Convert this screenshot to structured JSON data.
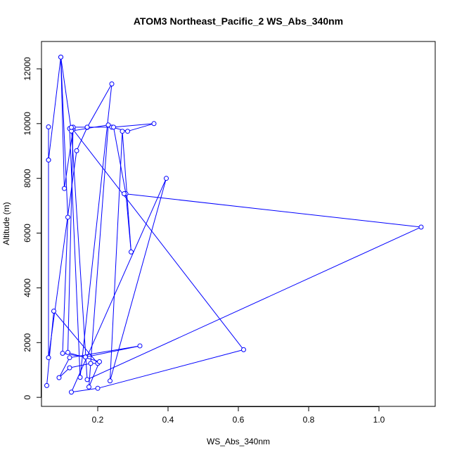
{
  "chart_data": {
    "type": "line",
    "title": "ATOM3 Northeast_Pacific_2 WS_Abs_340nm",
    "xlabel": "WS_Abs_340nm",
    "ylabel": "Altitude (m)",
    "xlim": [
      0.04,
      1.16
    ],
    "ylim": [
      -330,
      13000
    ],
    "x_ticks": [
      0.2,
      0.4,
      0.6,
      0.8,
      1.0
    ],
    "x_tick_labels": [
      "0.2",
      "0.4",
      "0.6",
      "0.8",
      "1.0"
    ],
    "y_ticks": [
      0,
      2000,
      4000,
      6000,
      8000,
      10000,
      12000
    ],
    "y_tick_labels": [
      "0",
      "2000",
      "4000",
      "6000",
      "8000",
      "10000",
      "12000"
    ],
    "grid": false,
    "legend": "none",
    "marker": "open-circle",
    "color": "#0000ff",
    "series": [
      {
        "x": [
          0.055,
          0.075,
          0.2,
          0.18,
          0.12,
          0.09,
          0.12,
          0.32,
          0.165,
          0.1,
          0.115,
          0.095,
          0.06,
          0.06,
          0.06,
          0.06,
          0.14,
          0.17,
          0.24,
          0.15,
          0.12,
          0.13,
          0.105,
          0.095,
          0.125,
          0.23,
          0.175,
          0.205,
          0.115,
          0.13,
          0.17,
          0.24,
          0.285,
          0.36,
          0.245,
          0.28,
          0.295,
          0.27,
          0.235,
          0.395,
          0.125,
          0.2,
          0.615,
          0.125,
          0.17,
          1.12,
          0.275
        ],
        "y": [
          430,
          3150,
          1240,
          1240,
          1080,
          720,
          1450,
          1880,
          1470,
          1610,
          6580,
          12430,
          8670,
          9880,
          8670,
          1450,
          9010,
          9860,
          11450,
          730,
          9820,
          9800,
          7630,
          12430,
          9730,
          9950,
          380,
          1300,
          1640,
          9870,
          9870,
          9870,
          9720,
          10000,
          9870,
          7440,
          5310,
          9720,
          600,
          8000,
          190,
          330,
          1740,
          9860,
          650,
          6220,
          7440
        ]
      }
    ]
  }
}
